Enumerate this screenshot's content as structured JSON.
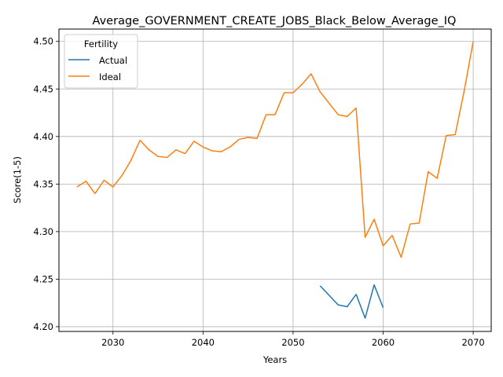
{
  "chart_data": {
    "type": "line",
    "title": "Average_GOVERNMENT_CREATE_JOBS_Black_Below_Average_IQ",
    "xlabel": "Years",
    "ylabel": "Score(1-5)",
    "xlim": [
      2024,
      2072
    ],
    "ylim": [
      4.195,
      4.513
    ],
    "xticks": [
      2030,
      2040,
      2050,
      2060,
      2070
    ],
    "yticks": [
      4.2,
      4.25,
      4.3,
      4.35,
      4.4,
      4.45,
      4.5
    ],
    "xtick_labels": [
      "2030",
      "2040",
      "2050",
      "2060",
      "2070"
    ],
    "ytick_labels": [
      "4.20",
      "4.25",
      "4.30",
      "4.35",
      "4.40",
      "4.45",
      "4.50"
    ],
    "grid": true,
    "legend": {
      "title": "Fertility",
      "position": "top-left"
    },
    "series": [
      {
        "name": "Actual",
        "color": "#1f77b4",
        "x": [
          2053,
          2054,
          2055,
          2056,
          2057,
          2058,
          2059,
          2060
        ],
        "y": [
          4.243,
          4.233,
          4.223,
          4.221,
          4.234,
          4.209,
          4.244,
          4.22
        ]
      },
      {
        "name": "Ideal",
        "color": "#ff7f0e",
        "x": [
          2026,
          2027,
          2028,
          2029,
          2030,
          2031,
          2032,
          2033,
          2034,
          2035,
          2036,
          2037,
          2038,
          2039,
          2040,
          2041,
          2042,
          2043,
          2044,
          2045,
          2046,
          2047,
          2048,
          2049,
          2050,
          2051,
          2052,
          2053,
          2054,
          2055,
          2056,
          2057,
          2058,
          2059,
          2060,
          2061,
          2062,
          2063,
          2064,
          2065,
          2066,
          2067,
          2068,
          2069,
          2070
        ],
        "y": [
          4.347,
          4.353,
          4.34,
          4.354,
          4.347,
          4.359,
          4.375,
          4.396,
          4.386,
          4.379,
          4.378,
          4.386,
          4.382,
          4.395,
          4.389,
          4.385,
          4.384,
          4.389,
          4.397,
          4.399,
          4.398,
          4.423,
          4.423,
          4.446,
          4.446,
          4.455,
          4.466,
          4.447,
          4.435,
          4.423,
          4.421,
          4.43,
          4.294,
          4.313,
          4.285,
          4.296,
          4.273,
          4.308,
          4.309,
          4.363,
          4.356,
          4.401,
          4.402,
          4.448,
          4.5
        ]
      }
    ]
  }
}
